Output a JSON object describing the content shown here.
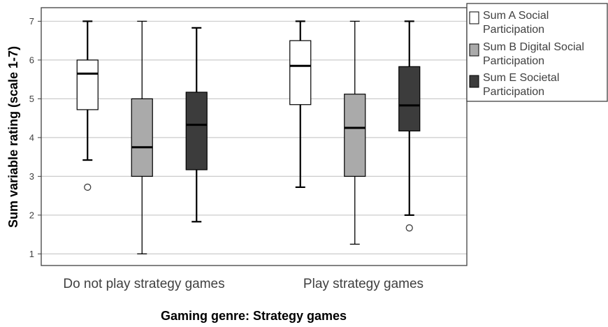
{
  "chart_data": {
    "type": "boxplot",
    "xlabel": "Gaming genre: Strategy games",
    "ylabel": "Sum variable rating (scale 1-7)",
    "ylim": [
      0.7,
      7.35
    ],
    "yticks": [
      1,
      2,
      3,
      4,
      5,
      6,
      7
    ],
    "categories": [
      "Do not play strategy games",
      "Play strategy games"
    ],
    "grid": "horizontal",
    "legend_position": "right",
    "series": [
      {
        "name": "Sum A Social Participation",
        "color": "#ffffff",
        "boxes": [
          {
            "min": 3.42,
            "q1": 4.72,
            "median": 5.65,
            "q3": 6.0,
            "max": 7.0,
            "outliers": [
              2.72
            ]
          },
          {
            "min": 2.72,
            "q1": 4.85,
            "median": 5.85,
            "q3": 6.5,
            "max": 7.0,
            "outliers": []
          }
        ]
      },
      {
        "name": "Sum B Digital Social Participation",
        "color": "#aaaaaa",
        "boxes": [
          {
            "min": 1.0,
            "q1": 3.0,
            "median": 3.75,
            "q3": 5.0,
            "max": 7.0,
            "outliers": []
          },
          {
            "min": 1.25,
            "q1": 3.0,
            "median": 4.25,
            "q3": 5.12,
            "max": 7.0,
            "outliers": []
          }
        ]
      },
      {
        "name": "Sum E Societal Participation",
        "color": "#3c3c3c",
        "boxes": [
          {
            "min": 1.83,
            "q1": 3.17,
            "median": 4.33,
            "q3": 5.17,
            "max": 6.83,
            "outliers": []
          },
          {
            "min": 2.0,
            "q1": 4.17,
            "median": 4.83,
            "q3": 5.83,
            "max": 7.0,
            "outliers": [
              1.67
            ]
          }
        ]
      }
    ]
  },
  "legend": {
    "items": [
      {
        "line1": "Sum A Social",
        "line2": "Participation",
        "color": "#ffffff"
      },
      {
        "line1": "Sum B Digital Social",
        "line2": "Participation",
        "color": "#aaaaaa"
      },
      {
        "line1": "Sum E Societal",
        "line2": "Participation",
        "color": "#3c3c3c"
      }
    ]
  }
}
